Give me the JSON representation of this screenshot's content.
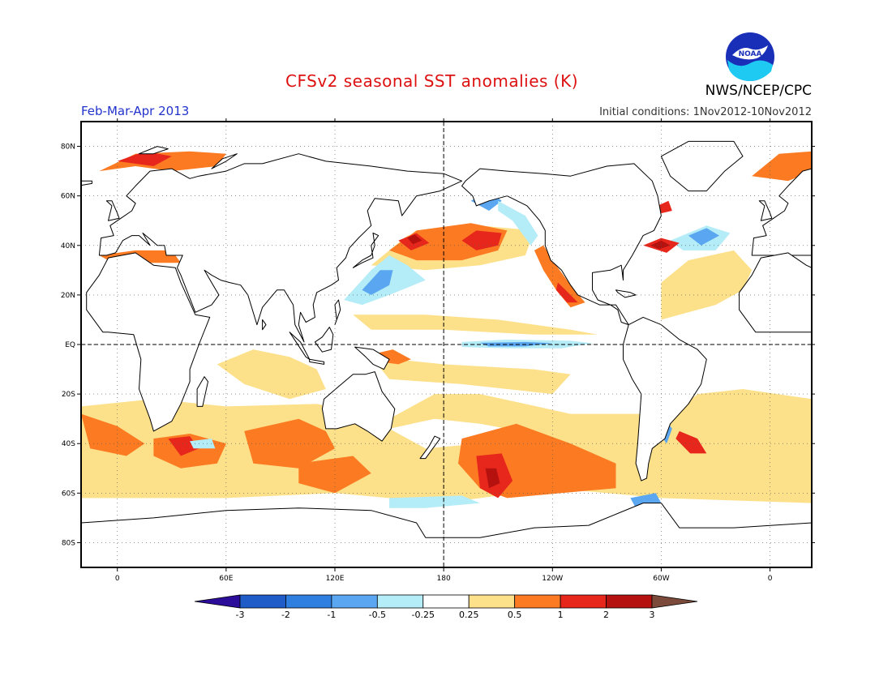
{
  "title": "CFSv2 seasonal SST anomalies (K)",
  "season": "Feb-Mar-Apr 2013",
  "initial_conditions": "Initial conditions: 1Nov2012-10Nov2012",
  "agency": "NWS/NCEP/CPC",
  "logo_text": "NOAA",
  "map": {
    "lon_ticks": [
      {
        "label": "0",
        "lon": 0
      },
      {
        "label": "60E",
        "lon": 60
      },
      {
        "label": "120E",
        "lon": 120
      },
      {
        "label": "180",
        "lon": 180
      },
      {
        "label": "120W",
        "lon": 240
      },
      {
        "label": "60W",
        "lon": 300
      },
      {
        "label": "0",
        "lon": 360
      }
    ],
    "lat_ticks": [
      {
        "label": "80N",
        "lat": 80
      },
      {
        "label": "60N",
        "lat": 60
      },
      {
        "label": "40N",
        "lat": 40
      },
      {
        "label": "20N",
        "lat": 20
      },
      {
        "label": "EQ",
        "lat": 0
      },
      {
        "label": "20S",
        "lat": -20
      },
      {
        "label": "40S",
        "lat": -40
      },
      {
        "label": "60S",
        "lat": -60
      },
      {
        "label": "80S",
        "lat": -80
      }
    ],
    "lon_range": [
      -20,
      383
    ],
    "lat_range": [
      -90,
      90
    ]
  },
  "legend": {
    "thresholds": [
      "-3",
      "-2",
      "-1",
      "-0.5",
      "-0.25",
      "0.25",
      "0.5",
      "1",
      "2",
      "3"
    ],
    "colors": [
      "#2b0d9a",
      "#1f5cc8",
      "#2f7fe0",
      "#5aa6f0",
      "#b4ecf7",
      "#ffffff",
      "#fde08a",
      "#fb7a22",
      "#e8271c",
      "#b5120f",
      "#7b4a3a"
    ]
  },
  "colors": {
    "title": "#dd1111",
    "season": "#2233cc",
    "coast": "#000000"
  }
}
